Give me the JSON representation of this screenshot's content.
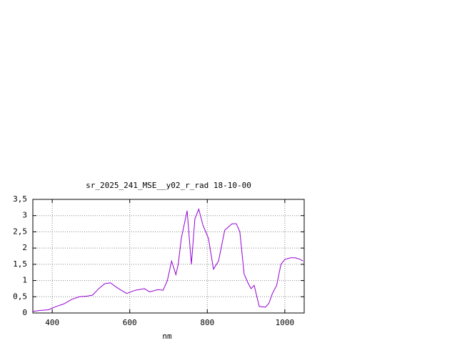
{
  "chart_data": {
    "type": "line",
    "title": "sr_2025_241_MSE__y02_r_rad 18-10-00",
    "x_label": "nm",
    "x": [
      350,
      370,
      390,
      410,
      430,
      450,
      470,
      490,
      504,
      520,
      535,
      550,
      565,
      578,
      592,
      614,
      638,
      651,
      673,
      686,
      697,
      708,
      719,
      725,
      733,
      748,
      759,
      768,
      778,
      789,
      803,
      816,
      829,
      845,
      864,
      875,
      884,
      895,
      906,
      913,
      921,
      934,
      950,
      959,
      968,
      979,
      990,
      1000,
      1015,
      1027,
      1040,
      1047
    ],
    "series": [
      {
        "name": "sr_2025_241_MSE__y02_r_rad 18-10-00",
        "color": "#9400d3",
        "values": [
          0.05,
          0.08,
          0.1,
          0.2,
          0.28,
          0.42,
          0.5,
          0.52,
          0.55,
          0.75,
          0.9,
          0.93,
          0.8,
          0.7,
          0.6,
          0.7,
          0.75,
          0.65,
          0.72,
          0.7,
          1.0,
          1.6,
          1.18,
          1.5,
          2.3,
          3.15,
          1.5,
          2.9,
          3.2,
          2.7,
          2.3,
          1.35,
          1.6,
          2.55,
          2.75,
          2.75,
          2.5,
          1.2,
          0.9,
          0.75,
          0.85,
          0.2,
          0.18,
          0.3,
          0.6,
          0.85,
          1.5,
          1.65,
          1.7,
          1.7,
          1.65,
          1.6
        ]
      }
    ],
    "xlim": [
      350,
      1050
    ],
    "xticks": [
      400,
      600,
      800,
      1000
    ],
    "ylim": [
      0,
      3.5
    ],
    "yticks": [
      0,
      {
        "value": 0.5,
        "label": "0,5"
      },
      1,
      {
        "value": 1.5,
        "label": "1,5"
      },
      2,
      {
        "value": 2.5,
        "label": "2,5"
      },
      3,
      {
        "value": 3.5,
        "label": "3,5"
      }
    ],
    "grid": true
  }
}
